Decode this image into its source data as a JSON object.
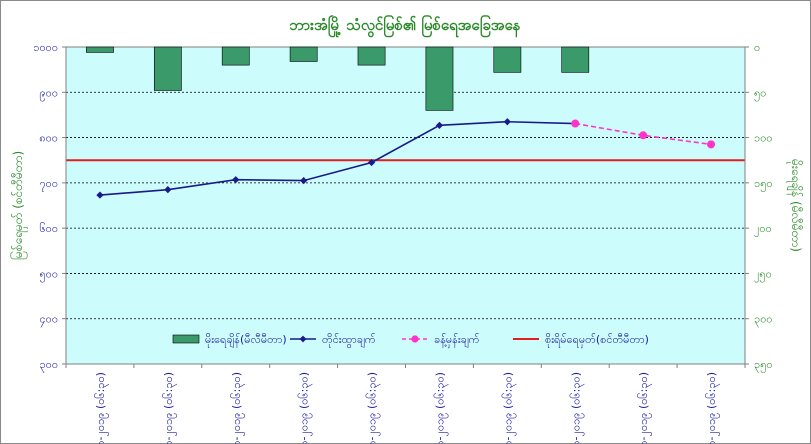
{
  "chart_data": {
    "type": "bar+line",
    "title": "ဘားအံမြို့ သံလွင်မြစ်၏ မြစ်ရေအခြေအနေ",
    "ylabel_left": "မြစ်ရေမှတ် (စင်တီမီတာ)",
    "ylabel_right": "မိုးရေချိန် (မီလီမီတာ)",
    "ylim_left": [
      300,
      1000
    ],
    "ylim_right": [
      0,
      350
    ],
    "y_ticks_left": [
      "၃၀၀",
      "၄၀၀",
      "၅၀၀",
      "၆၀၀",
      "၇၀၀",
      "၈၀၀",
      "၉၀၀",
      "၁၀၀၀"
    ],
    "y_ticks_right": [
      "၀",
      "၅၀",
      "၁၀၀",
      "၁၅၀",
      "၂၀၀",
      "၂၅၀",
      "၃၀၀",
      "၃၅၀"
    ],
    "categories": [
      "၁-၈-၂၀၁၉ (၀၆:၃၀)",
      "၂-၈-၂၀၁၉ (၀၆:၃၀)",
      "၃-၈-၂၀၁၉ (၀၆:၃၀)",
      "၄-၈-၂၀၁၉ (၀၆:၃၀)",
      "၅-၈-၂၀၁၉ (၀၆:၃၀)",
      "၆-၈-၂၀၁၉ (၀၆:၃၀)",
      "၇-၈-၂၀၁၉ (၀၆:၃၀)",
      "၈-၈-၂၀၁၉ (၀၆:၃၀)",
      "၉-၈-၂၀၁၉ (၀၆:၃၀)",
      "၁၀-၈-၂၀၁၉ (၀၆:၃၀)"
    ],
    "series": [
      {
        "name": "မိုးရေချိန်(မီလီမီတာ)",
        "type": "bar",
        "axis": "right",
        "color": "#3a9a6a",
        "values": [
          6,
          48,
          20,
          16,
          20,
          70,
          28,
          28,
          null,
          null
        ]
      },
      {
        "name": "တိုင်းထွာချက်",
        "type": "line",
        "axis": "left",
        "color": "#1a1a8a",
        "values": [
          673,
          685,
          707,
          705,
          745,
          827,
          835,
          831,
          null,
          null
        ]
      },
      {
        "name": "ခန့်မှန်းချက်",
        "type": "line-dashed",
        "axis": "left",
        "color": "#ff33cc",
        "values": [
          null,
          null,
          null,
          null,
          null,
          null,
          null,
          831,
          805,
          785
        ]
      },
      {
        "name": "စိုးရိမ်ရေမှတ်(စင်တီမီတာ)",
        "type": "hline",
        "axis": "left",
        "color": "#e02020",
        "value": 750
      }
    ],
    "grid": true,
    "legend": "bottom-inside"
  }
}
